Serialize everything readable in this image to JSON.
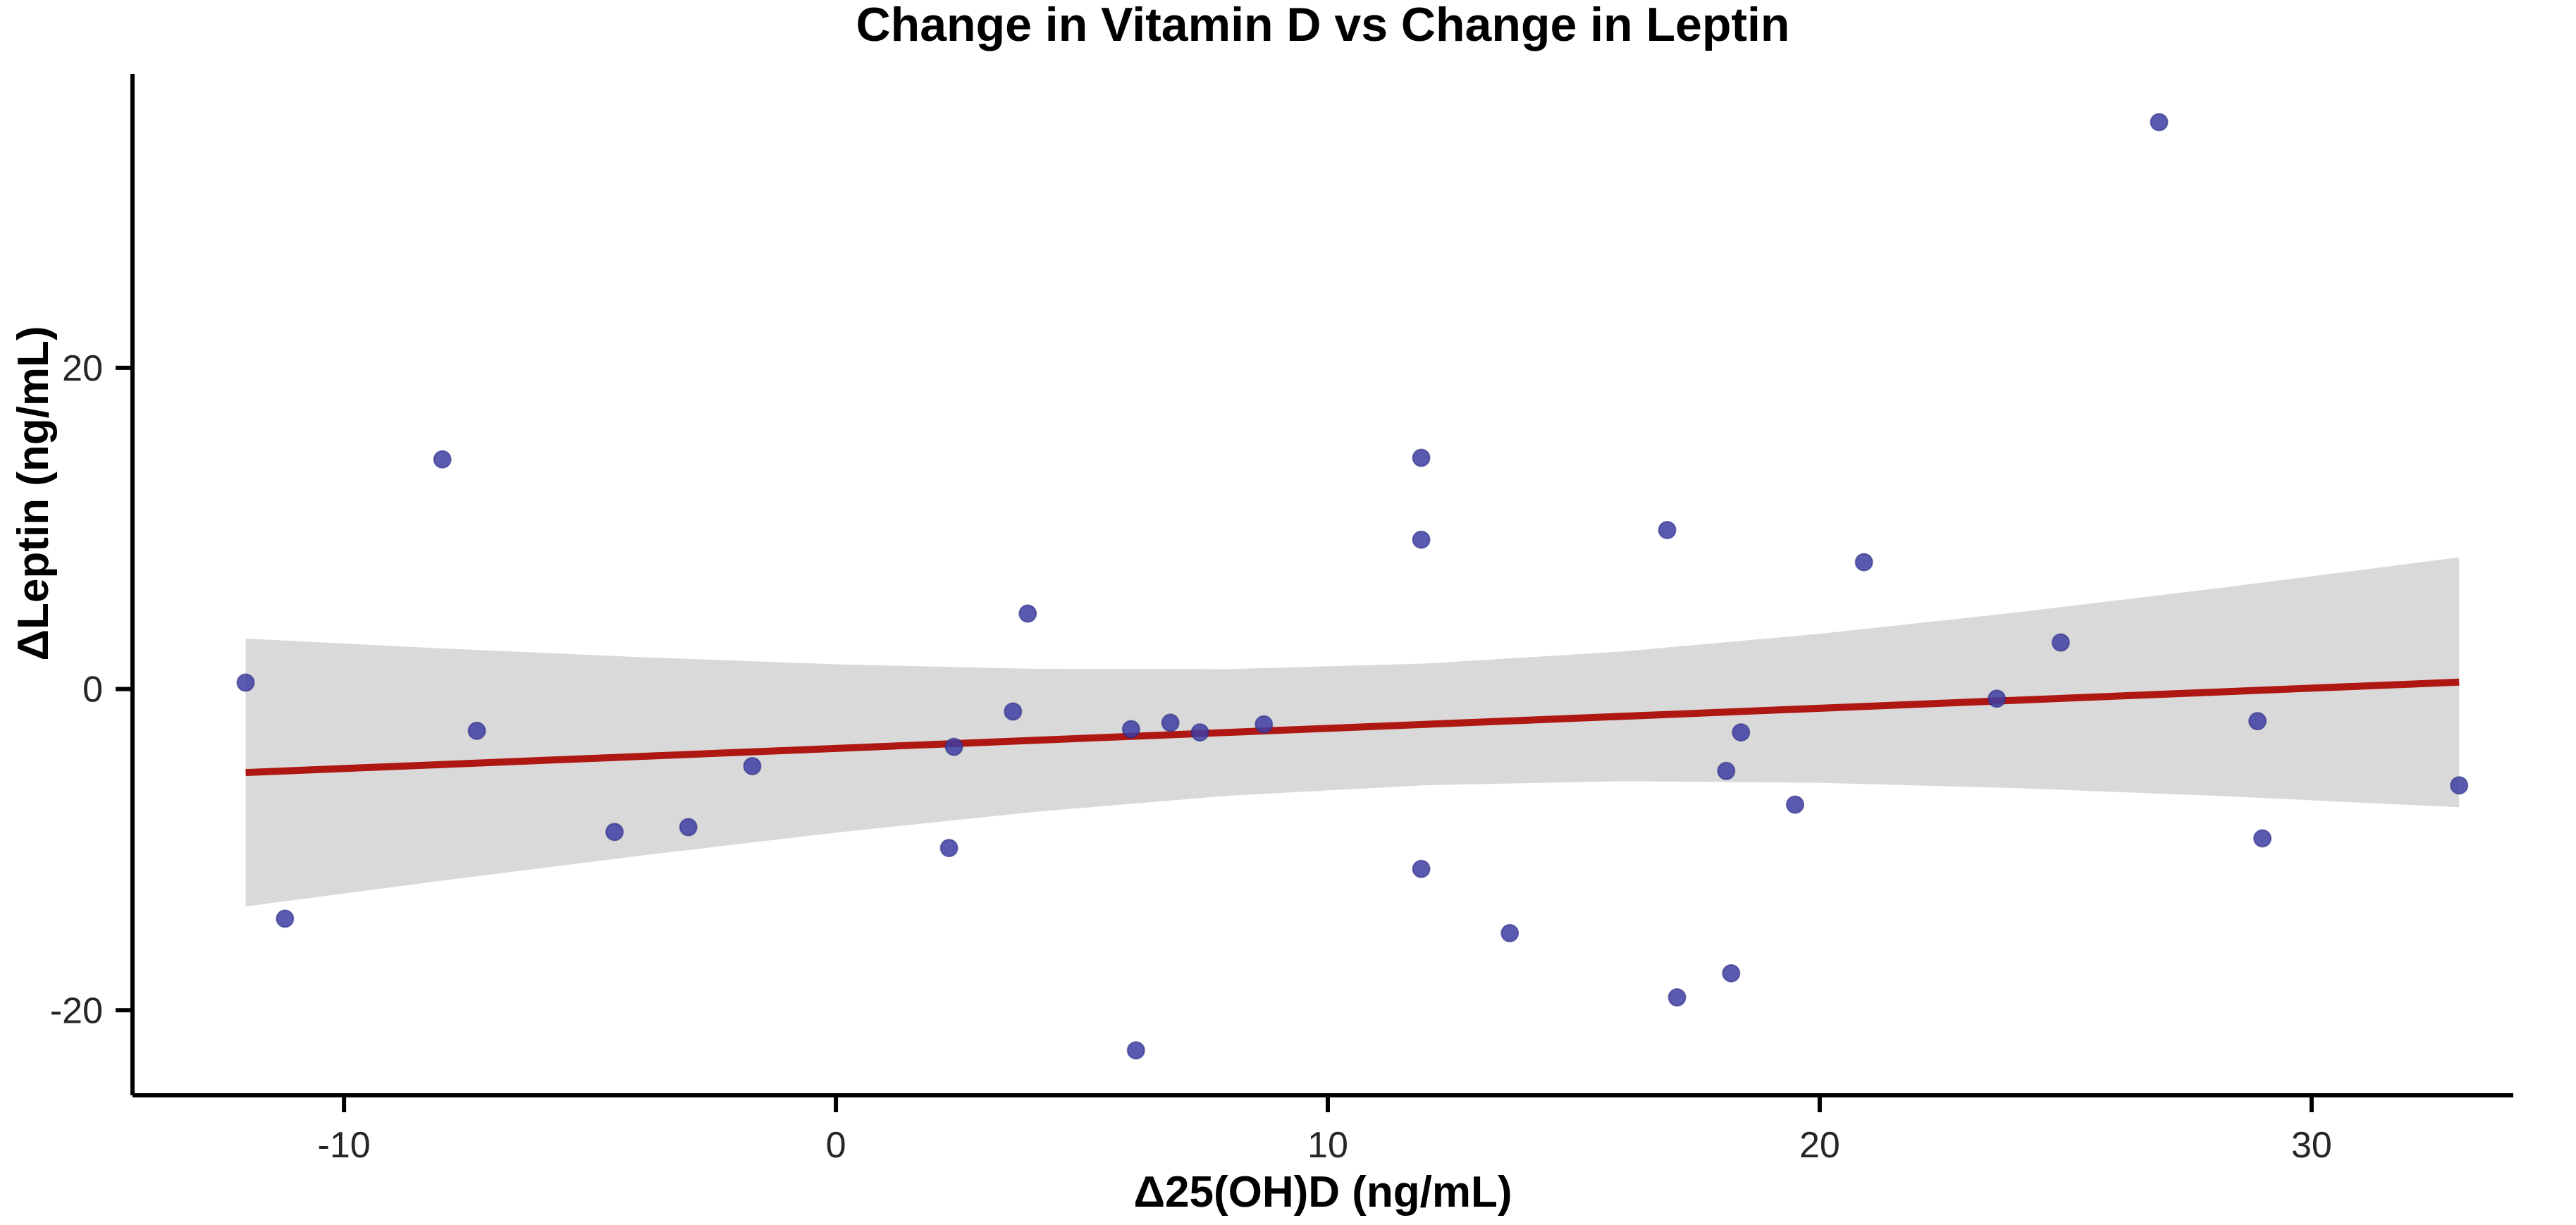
{
  "chart_data": {
    "type": "scatter",
    "title": "Change in Vitamin D vs Change in Leptin",
    "xlabel": "Δ25(OH)D (ng/mL)",
    "ylabel": "ΔLeptin (ng/mL)",
    "xlim": [
      -14.3,
      34.1
    ],
    "ylim": [
      -25.3,
      38.3
    ],
    "x_ticks": [
      -10,
      0,
      10,
      20,
      30
    ],
    "y_ticks": [
      -20,
      0,
      20
    ],
    "grid": false,
    "legend": "none",
    "points": [
      {
        "x": -12.0,
        "y": 0.4
      },
      {
        "x": -11.2,
        "y": -14.3
      },
      {
        "x": -8.0,
        "y": 14.3
      },
      {
        "x": -7.3,
        "y": -2.6
      },
      {
        "x": -4.5,
        "y": -8.9
      },
      {
        "x": -3.0,
        "y": -8.6
      },
      {
        "x": -1.7,
        "y": -4.8
      },
      {
        "x": 2.3,
        "y": -9.9
      },
      {
        "x": 2.4,
        "y": -3.6
      },
      {
        "x": 3.6,
        "y": -1.4
      },
      {
        "x": 3.9,
        "y": 4.7
      },
      {
        "x": 6.0,
        "y": -2.5
      },
      {
        "x": 6.1,
        "y": -22.5
      },
      {
        "x": 6.8,
        "y": -2.1
      },
      {
        "x": 7.4,
        "y": -2.7
      },
      {
        "x": 8.7,
        "y": -2.2
      },
      {
        "x": 11.9,
        "y": 14.4
      },
      {
        "x": 11.9,
        "y": 9.3
      },
      {
        "x": 11.9,
        "y": -11.2
      },
      {
        "x": 13.7,
        "y": -15.2
      },
      {
        "x": 16.9,
        "y": 9.9
      },
      {
        "x": 17.1,
        "y": -19.2
      },
      {
        "x": 18.1,
        "y": -5.1
      },
      {
        "x": 18.2,
        "y": -17.7
      },
      {
        "x": 18.4,
        "y": -2.7
      },
      {
        "x": 19.5,
        "y": -7.2
      },
      {
        "x": 20.9,
        "y": 7.9
      },
      {
        "x": 23.6,
        "y": -0.6
      },
      {
        "x": 24.9,
        "y": 2.9
      },
      {
        "x": 26.9,
        "y": 35.3
      },
      {
        "x": 28.9,
        "y": -2.0
      },
      {
        "x": 29.0,
        "y": -9.3
      },
      {
        "x": 33.0,
        "y": -6.0
      }
    ],
    "trend_line": {
      "type": "linear",
      "slope": 0.125,
      "intercept": -3.7,
      "x_start": -12.0,
      "x_end": 33.0,
      "y_start": -5.2,
      "y_end": 0.43
    },
    "confidence_band": {
      "x": [
        -12.0,
        -8.0,
        -4.0,
        0.0,
        4.0,
        8.0,
        12.0,
        16.0,
        20.0,
        24.0,
        28.0,
        33.0
      ],
      "top": [
        3.14,
        2.53,
        1.99,
        1.54,
        1.26,
        1.24,
        1.59,
        2.34,
        3.44,
        4.77,
        6.24,
        8.2
      ],
      "bottom": [
        -13.54,
        -11.93,
        -10.39,
        -8.94,
        -7.66,
        -6.64,
        -5.99,
        -5.74,
        -5.84,
        -6.17,
        -6.64,
        -7.36
      ]
    },
    "colors": {
      "point": "#3D3DA2",
      "point_stroke": "#2A2A85",
      "trend_line": "#AF1712",
      "band": "#D9D9D9",
      "axis": "#000000",
      "tick_label": "#262626",
      "title": "#000000"
    }
  }
}
